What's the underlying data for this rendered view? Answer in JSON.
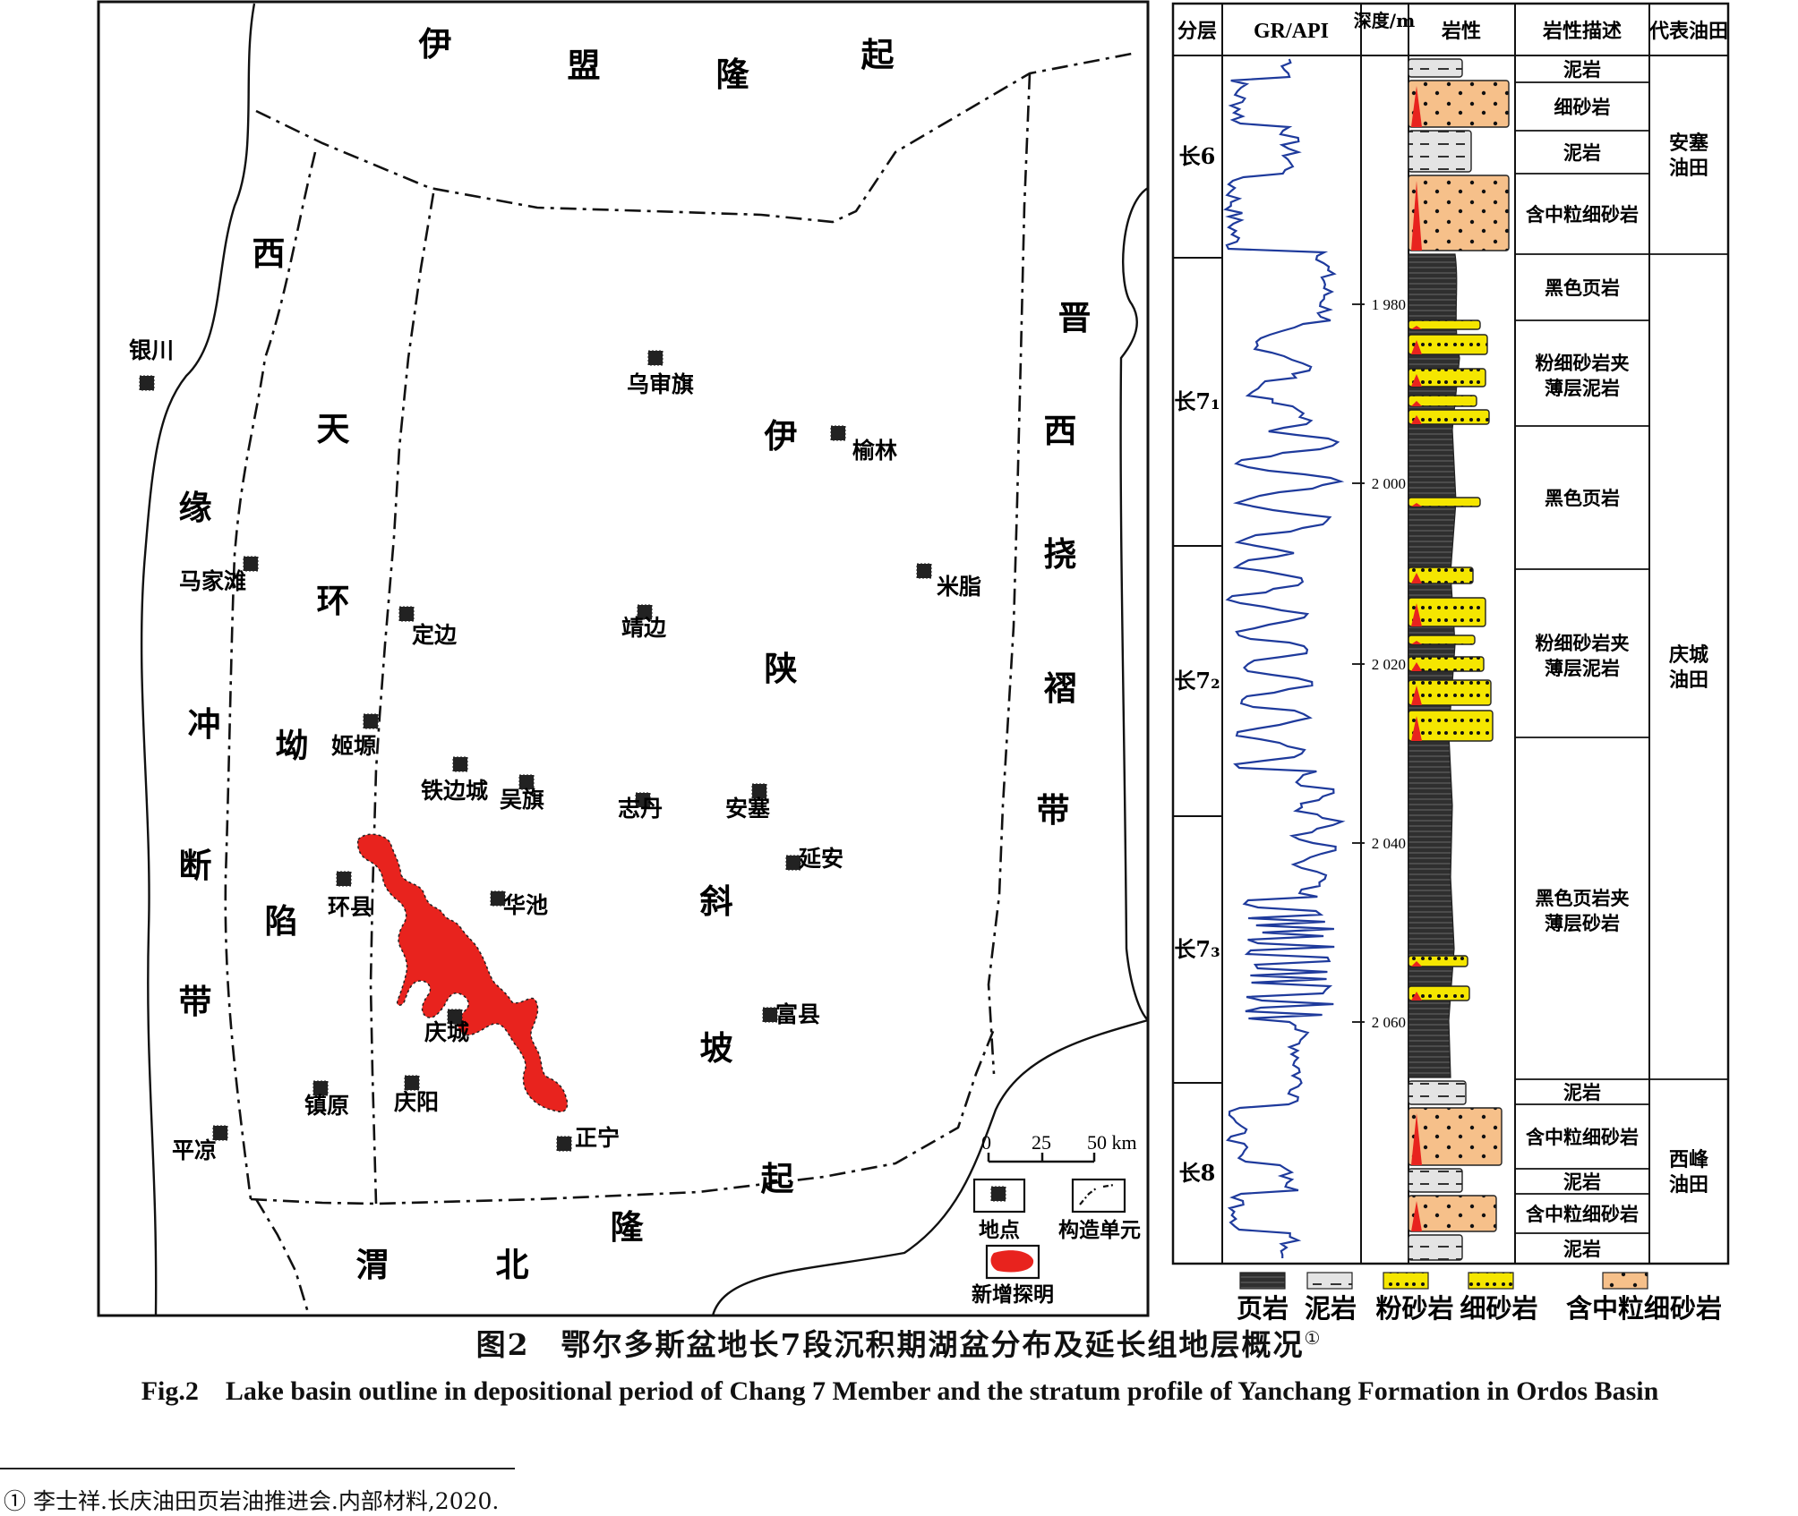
{
  "map": {
    "region_labels": [
      {
        "name": "yimeng-uplift",
        "chars": [
          "伊",
          "盟",
          "隆",
          "起"
        ]
      },
      {
        "name": "xiyuan-fault-belt",
        "chars": [
          "西",
          "缘",
          "冲",
          "断",
          "带"
        ]
      },
      {
        "name": "tianhuan-depression",
        "chars": [
          "天",
          "环",
          "坳",
          "陷"
        ]
      },
      {
        "name": "yishan-slope",
        "chars": [
          "伊",
          "陕",
          "斜",
          "坡"
        ]
      },
      {
        "name": "jinxi-fold-belt",
        "chars": [
          "晋",
          "西",
          "挠",
          "褶",
          "带"
        ]
      },
      {
        "name": "weibei-uplift",
        "chars": [
          "渭",
          "北",
          "隆",
          "起"
        ]
      }
    ],
    "cities": [
      "银川",
      "乌审旗",
      "榆林",
      "米脂",
      "马家滩",
      "定边",
      "靖边",
      "姬塬",
      "铁边城",
      "吴旗",
      "志丹",
      "安塞",
      "延安",
      "环县",
      "华池",
      "庆城",
      "富县",
      "镇原",
      "庆阳",
      "平凉",
      "正宁"
    ],
    "scale": {
      "ticks": [
        "0",
        "25",
        "50 km"
      ]
    },
    "legend": {
      "point": "地点",
      "unit": "构造单元",
      "new": "新增探明"
    },
    "colors": {
      "new_area": "#e8231e",
      "line": "#111111"
    }
  },
  "column": {
    "headers": {
      "layer": "分层",
      "gr": "GR/API",
      "depth": "深度/m",
      "lith": "岩性",
      "desc": "岩性描述",
      "field": "代表油田"
    },
    "layers": [
      "长6",
      "长7₁",
      "长7₂",
      "长7₃",
      "长8"
    ],
    "depth_ticks": [
      "1 980",
      "2 000",
      "2 020",
      "2 040",
      "2 060"
    ],
    "descriptions": [
      "泥岩",
      "细砂岩",
      "泥岩",
      "含中粒细砂岩",
      "黑色页岩",
      "粉细砂岩夹薄层泥岩",
      "黑色页岩",
      "粉细砂岩夹薄层泥岩",
      "黑色页岩夹薄层砂岩",
      "泥岩",
      "含中粒细砂岩",
      "泥岩",
      "含中粒细砂岩",
      "泥岩"
    ],
    "fields": [
      "安塞油田",
      "庆城油田",
      "西峰油田"
    ],
    "legend": [
      "页岩",
      "泥岩",
      "粉砂岩",
      "细砂岩",
      "含中粒细砂岩"
    ],
    "colors": {
      "shale": "#2f2f2f",
      "mud": "#e3e3e3",
      "silt": "#f5e600",
      "fine": "#f5e600",
      "medium": "#f6c08a",
      "gr_curve": "#1e3a9c",
      "marker": "#e8231e"
    }
  },
  "caption": {
    "cn": "图2　鄂尔多斯盆地长7段沉积期湖盆分布及延长组地层概况",
    "cn_mark": "①",
    "en": "Fig.2　Lake basin outline in depositional period of Chang 7 Member and the stratum profile of Yanchang Formation in Ordos Basin"
  },
  "footnote": "① 李士祥.长庆油田页岩油推进会.内部材料,2020."
}
